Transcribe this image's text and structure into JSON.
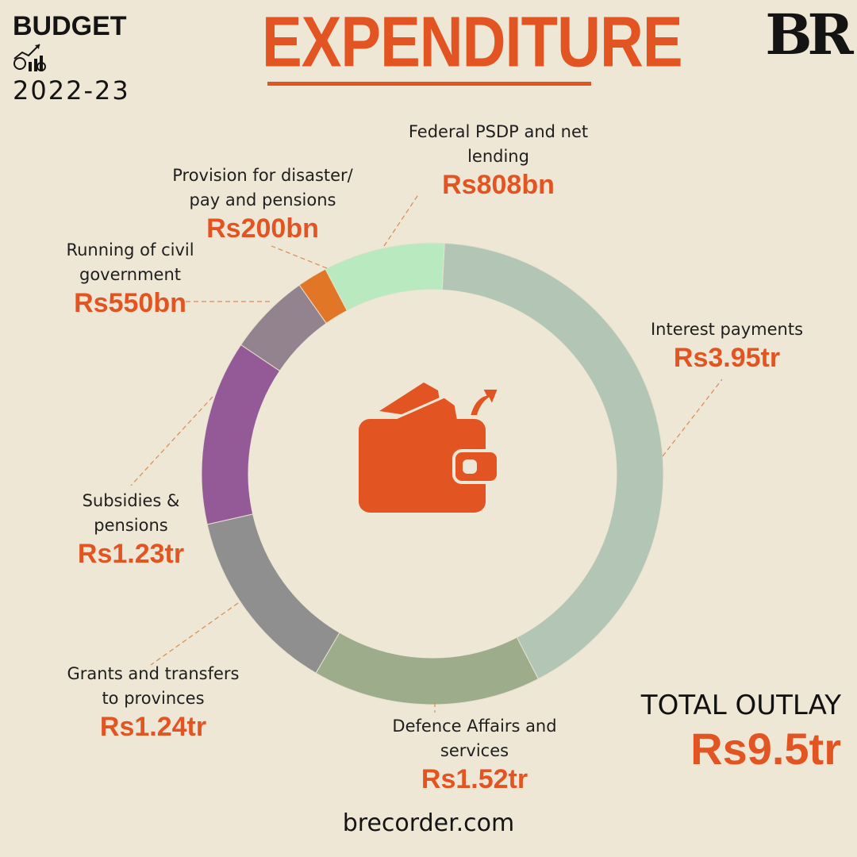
{
  "header": {
    "brand_line1": "BUDGET",
    "brand_line2": "2022-23",
    "title": "EXPENDITURE",
    "logo": "BR"
  },
  "chart_data": {
    "type": "pie",
    "categories": [
      "Interest payments",
      "Defence Affairs and services",
      "Grants and transfers to provinces",
      "Subsidies & pensions",
      "Running of civil government",
      "Provision for disaster/ pay and pensions",
      "Federal PSDP and net lending"
    ],
    "values": [
      3950,
      1520,
      1240,
      1230,
      550,
      200,
      808
    ],
    "value_labels": [
      "Rs3.95tr",
      "Rs1.52tr",
      "Rs1.24tr",
      "Rs1.23tr",
      "Rs550bn",
      "Rs200bn",
      "Rs808bn"
    ],
    "colors": [
      "#b3c6b6",
      "#9dac8b",
      "#8f8f8f",
      "#945a97",
      "#92838f",
      "#e27627",
      "#b8e9bf"
    ],
    "style": "donut"
  },
  "labels": [
    {
      "name": "Federal PSDP and net lending",
      "value": "Rs808bn"
    },
    {
      "name": "Provision for disaster/ pay and pensions",
      "value": "Rs200bn"
    },
    {
      "name": "Running of civil government",
      "value": "Rs550bn"
    },
    {
      "name": "Interest payments",
      "value": "Rs3.95tr"
    },
    {
      "name": "Subsidies & pensions",
      "value": "Rs1.23tr"
    },
    {
      "name": "Grants and transfers to provinces",
      "value": "Rs1.24tr"
    },
    {
      "name": "Defence Affairs and services",
      "value": "Rs1.52tr"
    }
  ],
  "total": {
    "label": "TOTAL OUTLAY",
    "value": "Rs9.5tr"
  },
  "footer": "brecorder.com",
  "icons": {
    "center": "wallet-icon",
    "brand": "budget-chart-icon"
  }
}
